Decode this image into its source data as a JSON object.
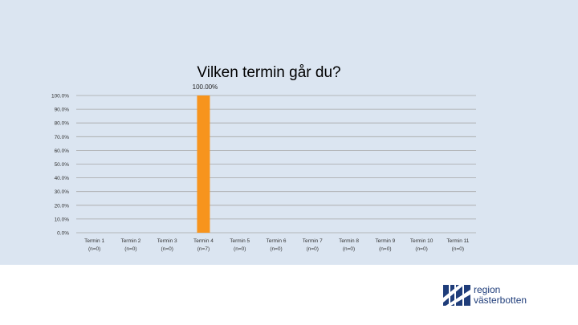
{
  "slide": {
    "background": "#dbe5f1"
  },
  "chart_data": {
    "type": "bar",
    "title": "Vilken termin går du?",
    "categories": [
      [
        "Termin 1",
        "(n=0)"
      ],
      [
        "Termin 2",
        "(n=0)"
      ],
      [
        "Termin 3",
        "(n=0)"
      ],
      [
        "Termin 4",
        "(n=7)"
      ],
      [
        "Termin 5",
        "(n=0)"
      ],
      [
        "Termin 6",
        "(n=0)"
      ],
      [
        "Termin 7",
        "(n=0)"
      ],
      [
        "Termin 8",
        "(n=0)"
      ],
      [
        "Termin 9",
        "(n=0)"
      ],
      [
        "Termin 10",
        "(n=0)"
      ],
      [
        "Termin 11",
        "(n=0)"
      ]
    ],
    "values": [
      0,
      0,
      0,
      100,
      0,
      0,
      0,
      0,
      0,
      0,
      0
    ],
    "data_labels": [
      "",
      "",
      "",
      "100.00%",
      "",
      "",
      "",
      "",
      "",
      "",
      ""
    ],
    "y_ticks": [
      "0.0%",
      "10.0%",
      "20.0%",
      "30.0%",
      "40.0%",
      "50.0%",
      "60.0%",
      "70.0%",
      "80.0%",
      "90.0%",
      "100.0%"
    ],
    "ylim": [
      0,
      100
    ],
    "grid": true,
    "bar_color": "#f7941d"
  },
  "logo": {
    "line1": "region",
    "line2": "västerbotten",
    "color": "#1f3d7a"
  }
}
